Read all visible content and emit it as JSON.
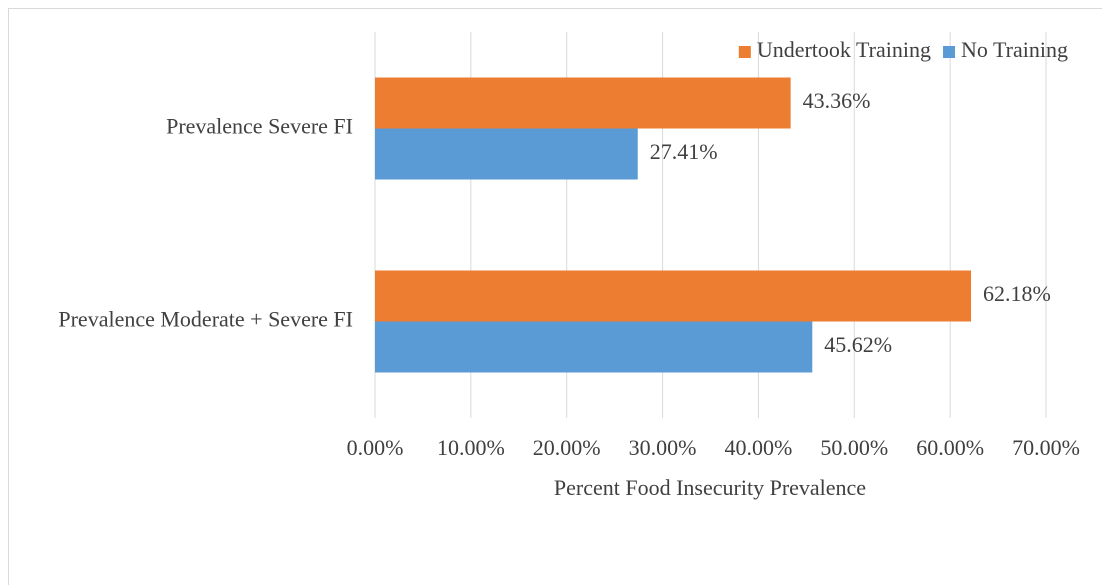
{
  "chart_data": {
    "type": "hbar",
    "categories": [
      "Prevalence Severe FI",
      "Prevalence Moderate + Severe FI"
    ],
    "series": [
      {
        "name": "Undertook Training",
        "color": "#ed7d31",
        "values": [
          43.36,
          62.18
        ],
        "value_labels": [
          "43.36%",
          "62.18%"
        ]
      },
      {
        "name": "No Training",
        "color": "#5b9bd5",
        "values": [
          27.41,
          45.62
        ],
        "value_labels": [
          "27.41%",
          "45.62%"
        ]
      }
    ],
    "xlabel": "Percent Food Insecurity Prevalence",
    "xlim": [
      0,
      70
    ],
    "xticks": [
      {
        "value": 0,
        "label": "0.00%"
      },
      {
        "value": 10,
        "label": "10.00%"
      },
      {
        "value": 20,
        "label": "20.00%"
      },
      {
        "value": 30,
        "label": "30.00%"
      },
      {
        "value": 40,
        "label": "40.00%"
      },
      {
        "value": 50,
        "label": "50.00%"
      },
      {
        "value": 60,
        "label": "60.00%"
      },
      {
        "value": 70,
        "label": "70.00%"
      }
    ],
    "grid": true,
    "legend": "top-right"
  }
}
